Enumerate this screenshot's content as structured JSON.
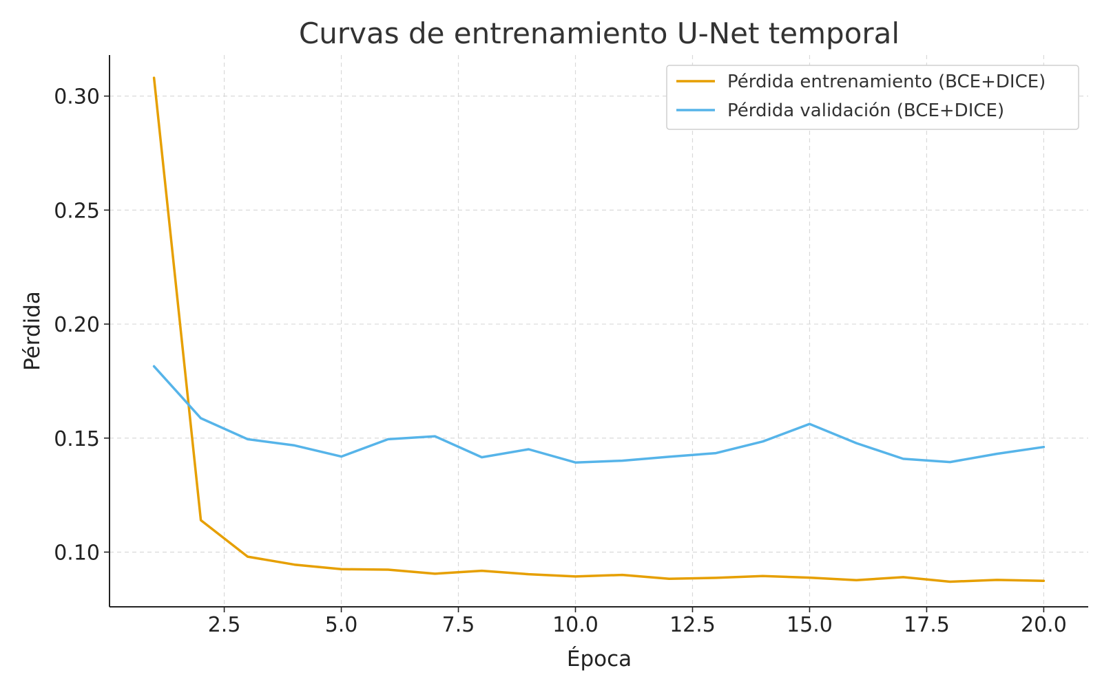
{
  "chart_data": {
    "type": "line",
    "title": "Curvas de entrenamiento U-Net temporal",
    "xlabel": "Época",
    "ylabel": "Pérdida",
    "x": [
      1,
      2,
      3,
      4,
      5,
      6,
      7,
      8,
      9,
      10,
      11,
      12,
      13,
      14,
      15,
      16,
      17,
      18,
      19,
      20
    ],
    "series": [
      {
        "name": "Pérdida entrenamiento (BCE+DICE)",
        "color": "#E69F00",
        "values": [
          0.308,
          0.114,
          0.098,
          0.0945,
          0.0925,
          0.0923,
          0.0905,
          0.0918,
          0.0903,
          0.0893,
          0.09,
          0.0883,
          0.0887,
          0.0895,
          0.0888,
          0.0877,
          0.089,
          0.087,
          0.0878,
          0.0874
        ]
      },
      {
        "name": "Pérdida validación (BCE+DICE)",
        "color": "#56B4E9",
        "values": [
          0.1815,
          0.1587,
          0.1495,
          0.1468,
          0.1419,
          0.1495,
          0.1508,
          0.1416,
          0.1451,
          0.1393,
          0.1401,
          0.1418,
          0.1434,
          0.1485,
          0.1562,
          0.1478,
          0.1409,
          0.1395,
          0.1431,
          0.1461
        ]
      }
    ],
    "xlim": [
      0.05,
      20.95
    ],
    "ylim": [
      0.076,
      0.318
    ],
    "xticks": [
      "2.5",
      "5.0",
      "7.5",
      "10.0",
      "12.5",
      "15.0",
      "17.5",
      "20.0"
    ],
    "yticks": [
      "0.10",
      "0.15",
      "0.20",
      "0.25",
      "0.30"
    ],
    "grid": true,
    "legend_position": "top-right"
  }
}
